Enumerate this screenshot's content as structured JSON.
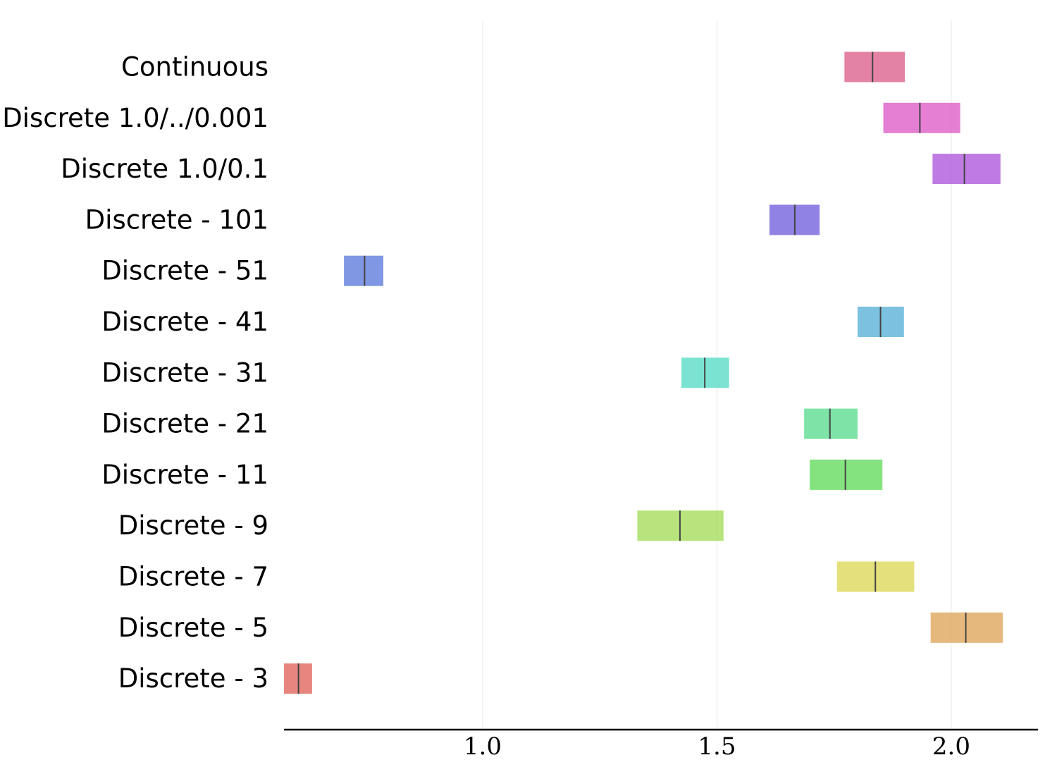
{
  "chart_data": {
    "type": "box",
    "title": "",
    "xlabel": "",
    "ylabel": "",
    "xlim": [
      0.576,
      2.185
    ],
    "xticks": [
      1.0,
      1.5,
      2.0
    ],
    "xtick_labels": [
      "1.0",
      "1.5",
      "2.0"
    ],
    "grid": "vertical",
    "categories": [
      "Continuous",
      "Discrete 1.0/../0.001",
      "Discrete 1.0/0.1",
      "Discrete - 101",
      "Discrete - 51",
      "Discrete - 41",
      "Discrete - 31",
      "Discrete - 21",
      "Discrete - 11",
      "Discrete - 9",
      "Discrete - 7",
      "Discrete - 5",
      "Discrete - 3"
    ],
    "series": [
      {
        "name": "Continuous",
        "q1": 1.772,
        "median": 1.832,
        "q3": 1.901,
        "color": "#d95887"
      },
      {
        "name": "Discrete 1.0/../0.001",
        "q1": 1.855,
        "median": 1.933,
        "q3": 2.019,
        "color": "#db54c4"
      },
      {
        "name": "Discrete 1.0/0.1",
        "q1": 1.96,
        "median": 2.028,
        "q3": 2.105,
        "color": "#ab4fd9"
      },
      {
        "name": "Discrete - 101",
        "q1": 1.612,
        "median": 1.666,
        "q3": 1.719,
        "color": "#6b58db"
      },
      {
        "name": "Discrete - 51",
        "q1": 0.704,
        "median": 0.748,
        "q3": 0.788,
        "color": "#5674d9"
      },
      {
        "name": "Discrete - 41",
        "q1": 1.8,
        "median": 1.849,
        "q3": 1.899,
        "color": "#50acd6"
      },
      {
        "name": "Discrete - 31",
        "q1": 1.424,
        "median": 1.474,
        "q3": 1.526,
        "color": "#50dac4"
      },
      {
        "name": "Discrete - 21",
        "q1": 1.686,
        "median": 1.741,
        "q3": 1.8,
        "color": "#52da88"
      },
      {
        "name": "Discrete - 11",
        "q1": 1.698,
        "median": 1.774,
        "q3": 1.853,
        "color": "#5bd953"
      },
      {
        "name": "Discrete - 9",
        "q1": 1.33,
        "median": 1.421,
        "q3": 1.514,
        "color": "#9fdb50"
      },
      {
        "name": "Discrete - 7",
        "q1": 1.756,
        "median": 1.838,
        "q3": 1.921,
        "color": "#dbd752"
      },
      {
        "name": "Discrete - 5",
        "q1": 1.956,
        "median": 2.031,
        "q3": 2.11,
        "color": "#dca053"
      },
      {
        "name": "Discrete - 3",
        "q1": 0.576,
        "median": 0.607,
        "q3": 0.636,
        "color": "#df5c54"
      }
    ]
  }
}
